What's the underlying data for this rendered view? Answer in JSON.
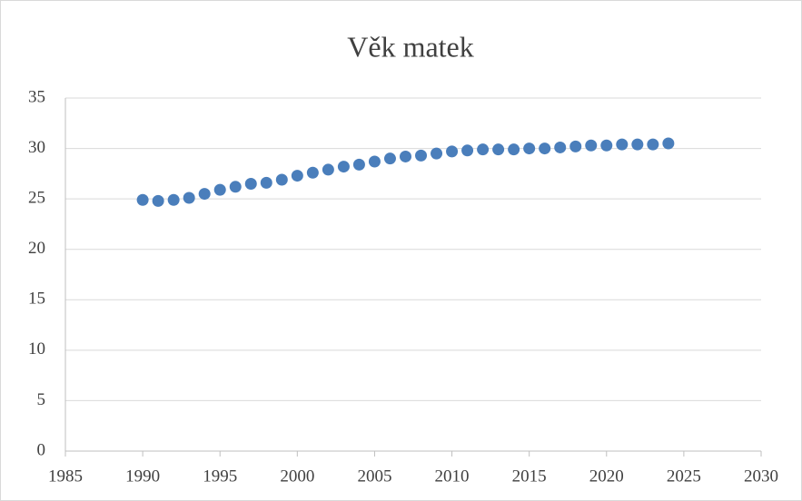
{
  "chart_data": {
    "type": "scatter",
    "title": "Věk matek",
    "series": [
      {
        "color": "#4a7ebb",
        "x": [
          1990,
          1991,
          1992,
          1993,
          1994,
          1995,
          1996,
          1997,
          1998,
          1999,
          2000,
          2001,
          2002,
          2003,
          2004,
          2005,
          2006,
          2007,
          2008,
          2009,
          2010,
          2011,
          2012,
          2013,
          2014,
          2015,
          2016,
          2017,
          2018,
          2019,
          2020,
          2021,
          2022,
          2023,
          2024
        ],
        "values": [
          24.9,
          24.8,
          24.9,
          25.1,
          25.5,
          25.9,
          26.2,
          26.5,
          26.6,
          26.9,
          27.3,
          27.6,
          27.9,
          28.2,
          28.4,
          28.7,
          29.0,
          29.2,
          29.3,
          29.5,
          29.7,
          29.8,
          29.9,
          29.9,
          29.9,
          30.0,
          30.0,
          30.1,
          30.2,
          30.3,
          30.3,
          30.4,
          30.4,
          30.4,
          30.5
        ]
      }
    ],
    "xlim": [
      1985,
      2030
    ],
    "xticks": [
      1985,
      1990,
      1995,
      2000,
      2005,
      2010,
      2015,
      2020,
      2025,
      2030
    ],
    "ylim": [
      0,
      35
    ],
    "yticks": [
      0,
      5,
      10,
      15,
      20,
      25,
      30,
      35
    ],
    "grid": true
  }
}
